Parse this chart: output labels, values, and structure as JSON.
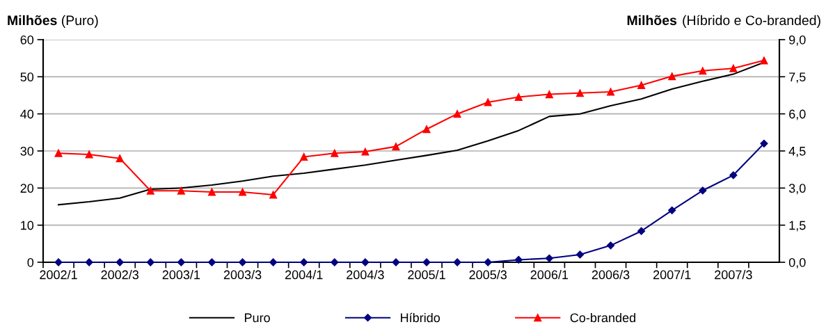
{
  "chart_data": {
    "type": "line",
    "ylabel": "Milhões (Puro)",
    "y2label": "Milhões (Híbrido e Co-branded)",
    "categories": [
      "2002/1",
      null,
      "2002/3",
      null,
      "2003/1",
      null,
      "2003/3",
      null,
      "2004/1",
      null,
      "2004/3",
      null,
      "2005/1",
      null,
      "2005/3",
      null,
      "2006/1",
      null,
      "2006/3",
      null,
      "2007/1",
      null,
      "2007/3",
      null
    ],
    "series": [
      {
        "name": "Puro",
        "color": "#000000",
        "marker": "none",
        "values": [
          15.5,
          16.3,
          17.3,
          19.7,
          20.0,
          20.8,
          21.9,
          23.2,
          24.0,
          25.1,
          26.2,
          27.5,
          28.8,
          30.2,
          32.7,
          35.5,
          39.3,
          40.0,
          42.2,
          44.0,
          46.7,
          48.8,
          50.7,
          53.9
        ]
      },
      {
        "name": "Híbrido",
        "color": "#000080",
        "marker": "diamond",
        "axis": "y2",
        "values": [
          0,
          0,
          0,
          0,
          0,
          0,
          0,
          0,
          0,
          0,
          0,
          0,
          0,
          0,
          0,
          0.1,
          0.16,
          0.31,
          0.68,
          1.26,
          2.1,
          2.9,
          3.52,
          4.8
        ]
      },
      {
        "name": "Co-branded",
        "color": "#ff0000",
        "marker": "triangle",
        "axis": "y2",
        "values": [
          4.41,
          4.36,
          4.2,
          2.89,
          2.89,
          2.84,
          2.84,
          2.73,
          4.26,
          4.41,
          4.47,
          4.68,
          5.38,
          6.0,
          6.47,
          6.68,
          6.79,
          6.84,
          6.89,
          7.16,
          7.52,
          7.74,
          7.84,
          8.16
        ]
      }
    ],
    "ylim": [
      0,
      60
    ],
    "yticks": [
      0,
      10,
      20,
      30,
      40,
      50,
      60
    ],
    "y2lim": [
      0,
      9
    ],
    "y2ticks": [
      {
        "value": 0,
        "label": "0,0"
      },
      {
        "value": 1.5,
        "label": "1,5"
      },
      {
        "value": 3,
        "label": "3,0"
      },
      {
        "value": 4.5,
        "label": "4,5"
      },
      {
        "value": 6,
        "label": "6,0"
      },
      {
        "value": 7.5,
        "label": "7,5"
      },
      {
        "value": 9,
        "label": "9,0"
      }
    ],
    "grid": "y",
    "legend": "bottom",
    "line_style": "solid"
  }
}
